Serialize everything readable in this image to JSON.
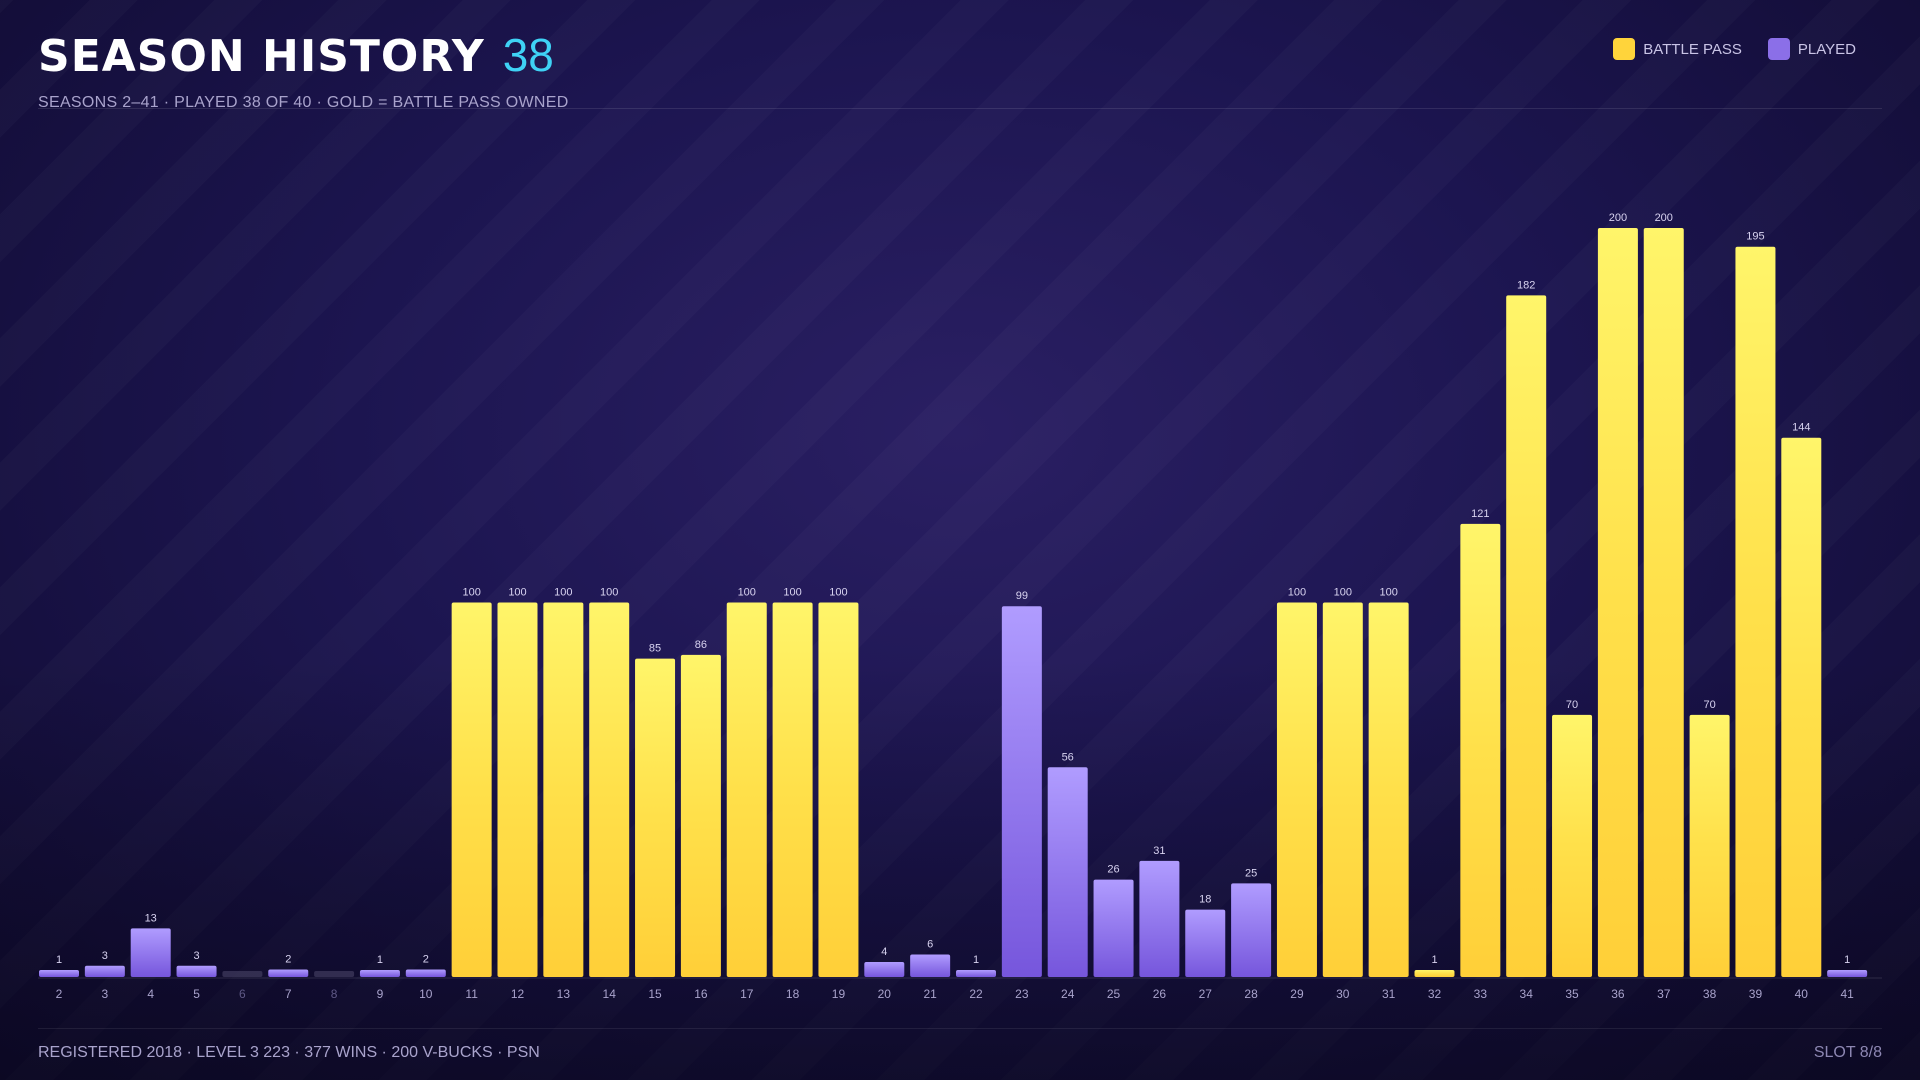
{
  "header": {
    "title": "SEASON HISTORY",
    "count": "38",
    "subtitle": "SEASONS 2–41 · PLAYED 38 OF 40 · GOLD = BATTLE PASS OWNED"
  },
  "legend": {
    "battle_pass": "BATTLE PASS",
    "played": "PLAYED"
  },
  "footer": {
    "left": "REGISTERED 2018 · LEVEL 3 223 · 377 WINS · 200 V-BUCKS · PSN",
    "right": "SLOT 8/8"
  },
  "colors": {
    "battle_pass": "#ffd43b",
    "played": "#8b6fe8",
    "count_accent": "#3fd2f5",
    "unplayed": "#4a4468"
  },
  "chart_data": {
    "type": "bar",
    "categories": [
      "2",
      "3",
      "4",
      "5",
      "6",
      "7",
      "8",
      "9",
      "10",
      "11",
      "12",
      "13",
      "14",
      "15",
      "16",
      "17",
      "18",
      "19",
      "20",
      "21",
      "22",
      "23",
      "24",
      "25",
      "26",
      "27",
      "28",
      "29",
      "30",
      "31",
      "32",
      "33",
      "34",
      "35",
      "36",
      "37",
      "38",
      "39",
      "40",
      "41"
    ],
    "values": [
      1,
      3,
      13,
      3,
      0,
      2,
      0,
      1,
      2,
      100,
      100,
      100,
      100,
      85,
      86,
      100,
      100,
      100,
      4,
      6,
      1,
      99,
      56,
      26,
      31,
      18,
      25,
      100,
      100,
      100,
      1,
      121,
      182,
      70,
      200,
      200,
      70,
      195,
      144,
      1
    ],
    "battle_pass": [
      false,
      false,
      false,
      false,
      false,
      false,
      false,
      false,
      false,
      true,
      true,
      true,
      true,
      true,
      true,
      true,
      true,
      true,
      false,
      false,
      false,
      false,
      false,
      false,
      false,
      false,
      false,
      true,
      true,
      true,
      true,
      true,
      true,
      true,
      true,
      true,
      true,
      true,
      true,
      false
    ],
    "played": [
      true,
      true,
      true,
      true,
      false,
      true,
      false,
      true,
      true,
      true,
      true,
      true,
      true,
      true,
      true,
      true,
      true,
      true,
      true,
      true,
      true,
      true,
      true,
      true,
      true,
      true,
      true,
      true,
      true,
      true,
      true,
      true,
      true,
      true,
      true,
      true,
      true,
      true,
      true,
      true
    ],
    "ylim": [
      0,
      200
    ],
    "legend_position": "top-right",
    "grid": false
  }
}
